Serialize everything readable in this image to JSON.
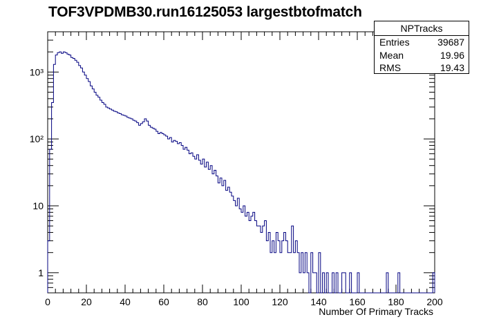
{
  "chart_data": {
    "type": "histogram",
    "title": "TOF3VPDMB30.run16125053 largestbtofmatch",
    "xlabel": "Number Of Primary Tracks",
    "ylabel": "",
    "xlim": [
      0,
      200
    ],
    "ylim": [
      0.5,
      4000
    ],
    "y_scale": "log",
    "bin_width": 1,
    "x_ticks": [
      0,
      20,
      40,
      60,
      80,
      100,
      120,
      140,
      160,
      180,
      200
    ],
    "x_tick_labels": [
      "0",
      "20",
      "40",
      "60",
      "80",
      "100",
      "120",
      "140",
      "160",
      "180",
      "200"
    ],
    "y_ticks": [
      1,
      10,
      100,
      1000
    ],
    "y_tick_labels": [
      "1",
      "10",
      "10²",
      "10³"
    ],
    "line_color": "#000080",
    "bins_start": 0,
    "values": [
      3,
      70,
      350,
      1300,
      1800,
      1950,
      2000,
      1900,
      2000,
      1950,
      1850,
      1800,
      1650,
      1600,
      1500,
      1400,
      1250,
      1150,
      1000,
      900,
      800,
      720,
      620,
      560,
      500,
      450,
      420,
      380,
      350,
      330,
      300,
      290,
      280,
      270,
      260,
      255,
      245,
      240,
      230,
      225,
      220,
      210,
      205,
      200,
      190,
      185,
      175,
      160,
      170,
      180,
      200,
      185,
      160,
      150,
      145,
      140,
      130,
      120,
      125,
      120,
      115,
      110,
      100,
      105,
      90,
      95,
      92,
      85,
      88,
      80,
      70,
      75,
      68,
      60,
      62,
      55,
      50,
      58,
      48,
      42,
      50,
      38,
      45,
      35,
      40,
      30,
      34,
      28,
      22,
      26,
      20,
      24,
      17,
      19,
      16,
      14,
      12,
      10,
      13,
      9,
      8,
      10,
      7,
      8,
      6,
      7,
      8,
      6,
      5,
      5,
      4,
      5,
      6,
      3,
      4,
      2,
      3,
      2,
      4,
      3,
      2,
      3,
      4,
      3,
      2,
      2,
      5,
      2,
      3,
      2,
      1,
      2,
      1,
      2,
      1,
      0,
      2,
      1,
      1,
      0,
      2,
      0,
      1,
      0,
      1,
      0,
      0,
      1,
      0,
      1,
      0,
      0,
      1,
      1,
      0,
      0,
      1,
      0,
      0,
      0,
      1,
      0,
      0,
      0,
      0,
      0,
      0,
      0,
      0,
      0,
      0,
      0,
      0,
      0,
      0,
      1,
      0,
      0,
      0,
      0,
      0,
      1,
      0,
      0,
      0,
      0,
      0,
      0,
      0,
      0,
      0,
      0,
      0,
      0,
      0,
      0,
      0,
      0,
      0,
      1
    ]
  },
  "stats": {
    "name": "NPTracks",
    "entries_label": "Entries",
    "entries_value": "39687",
    "mean_label": "Mean",
    "mean_value": "19.96",
    "rms_label": "RMS",
    "rms_value": "19.43"
  }
}
